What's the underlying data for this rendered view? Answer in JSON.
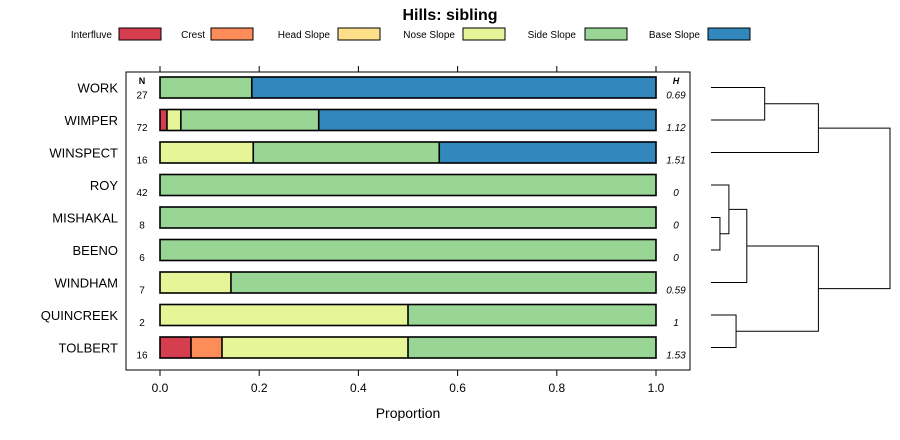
{
  "chart_data": {
    "type": "bar",
    "subtype": "stacked-horizontal-proportion",
    "title": "Hills: sibling",
    "xlabel": "Proportion",
    "ylabel": "",
    "xlim": [
      0,
      1
    ],
    "x_ticks": [
      0.0,
      0.2,
      0.4,
      0.6,
      0.8,
      1.0
    ],
    "x_tick_labels": [
      "0.0",
      "0.2",
      "0.4",
      "0.6",
      "0.8",
      "1.0"
    ],
    "n_header": "N",
    "h_header": "H",
    "legend": [
      {
        "name": "Interfluve",
        "color": "#d53e4f"
      },
      {
        "name": "Crest",
        "color": "#fc8d59"
      },
      {
        "name": "Head Slope",
        "color": "#fee08b"
      },
      {
        "name": "Nose Slope",
        "color": "#e6f598"
      },
      {
        "name": "Side Slope",
        "color": "#99d594"
      },
      {
        "name": "Base Slope",
        "color": "#3288bd"
      }
    ],
    "rows": [
      {
        "label": "WORK",
        "n": "27",
        "h": "0.69",
        "values": [
          0,
          0,
          0,
          0,
          0.185,
          0.815
        ]
      },
      {
        "label": "WIMPER",
        "n": "72",
        "h": "1.12",
        "values": [
          0.014,
          0,
          0,
          0.028,
          0.278,
          0.68
        ]
      },
      {
        "label": "WINSPECT",
        "n": "16",
        "h": "1.51",
        "values": [
          0,
          0,
          0,
          0.188,
          0.375,
          0.437
        ]
      },
      {
        "label": "ROY",
        "n": "42",
        "h": "0",
        "values": [
          0,
          0,
          0,
          0,
          1.0,
          0
        ]
      },
      {
        "label": "MISHAKAL",
        "n": "8",
        "h": "0",
        "values": [
          0,
          0,
          0,
          0,
          1.0,
          0
        ]
      },
      {
        "label": "BEENO",
        "n": "6",
        "h": "0",
        "values": [
          0,
          0,
          0,
          0,
          1.0,
          0
        ]
      },
      {
        "label": "WINDHAM",
        "n": "7",
        "h": "0.59",
        "values": [
          0,
          0,
          0,
          0.143,
          0.857,
          0
        ]
      },
      {
        "label": "QUINCREEK",
        "n": "2",
        "h": "1",
        "values": [
          0,
          0,
          0,
          0.5,
          0.5,
          0
        ]
      },
      {
        "label": "TOLBERT",
        "n": "16",
        "h": "1.53",
        "values": [
          0.0625,
          0.0625,
          0,
          0.375,
          0.5,
          0
        ]
      }
    ],
    "dendrogram": {
      "leaves": [
        "WORK",
        "WIMPER",
        "WINSPECT",
        "ROY",
        "MISHAKAL",
        "BEENO",
        "WINDHAM",
        "QUINCREEK",
        "TOLBERT"
      ],
      "merges": [
        {
          "id": "A",
          "children": [
            "WORK",
            "WIMPER"
          ],
          "height": 0.3
        },
        {
          "id": "B",
          "children": [
            "A",
            "WINSPECT"
          ],
          "height": 0.6
        },
        {
          "id": "C",
          "children": [
            "MISHAKAL",
            "BEENO"
          ],
          "height": 0.05
        },
        {
          "id": "D",
          "children": [
            "ROY",
            "C"
          ],
          "height": 0.1
        },
        {
          "id": "E",
          "children": [
            "D",
            "WINDHAM"
          ],
          "height": 0.2
        },
        {
          "id": "F",
          "children": [
            "QUINCREEK",
            "TOLBERT"
          ],
          "height": 0.14
        },
        {
          "id": "G",
          "children": [
            "E",
            "F"
          ],
          "height": 0.6
        },
        {
          "id": "H",
          "children": [
            "B",
            "G"
          ],
          "height": 1.0
        }
      ]
    }
  }
}
